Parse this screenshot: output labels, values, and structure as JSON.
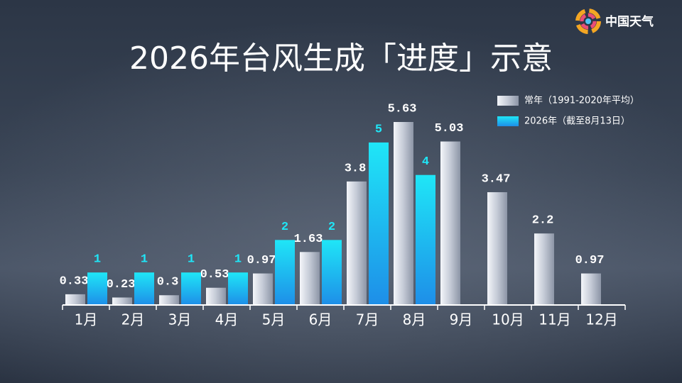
{
  "brand": "中国天气",
  "chart_data": {
    "type": "bar",
    "title": "2026年台风生成「进度」示意",
    "categories": [
      "1月",
      "2月",
      "3月",
      "4月",
      "5月",
      "6月",
      "7月",
      "8月",
      "9月",
      "10月",
      "11月",
      "12月"
    ],
    "series": [
      {
        "name": "常年（1991-2020年平均）",
        "color": "#c4cad6",
        "values": [
          0.33,
          0.23,
          0.3,
          0.53,
          0.97,
          1.63,
          3.8,
          5.63,
          5.03,
          3.47,
          2.2,
          0.97
        ]
      },
      {
        "name": "2026年（截至8月13日）",
        "color": "#1fe6f7",
        "values": [
          1,
          1,
          1,
          1,
          2,
          2,
          5,
          4,
          null,
          null,
          null,
          null
        ]
      }
    ]
  }
}
